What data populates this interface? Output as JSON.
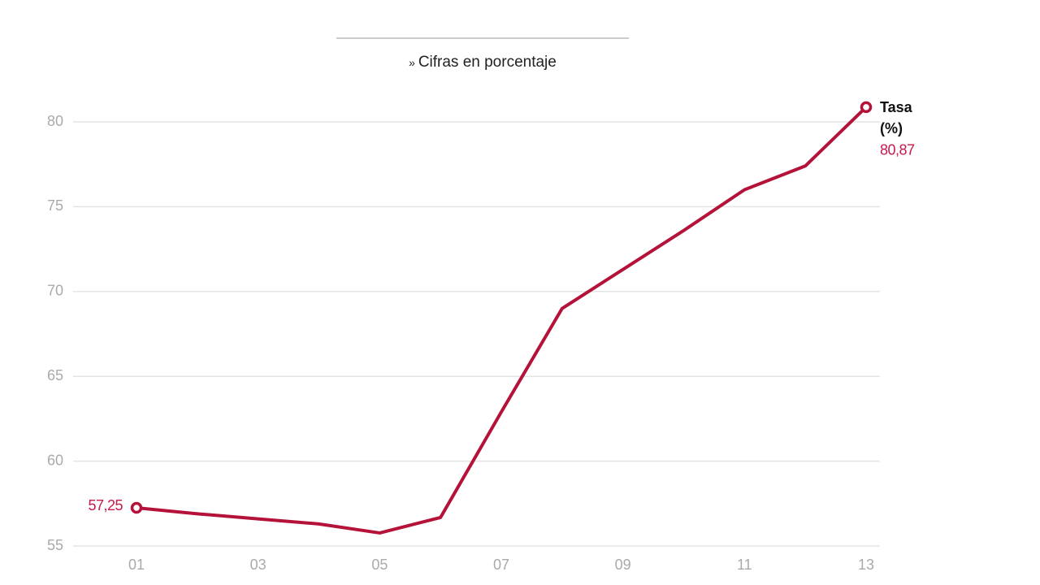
{
  "chart_data": {
    "type": "line",
    "subtitle": "Cifras en porcentaje",
    "categories": [
      "01",
      null,
      "03",
      null,
      "05",
      null,
      "07",
      null,
      "09",
      null,
      "11",
      null,
      "13"
    ],
    "series": [
      {
        "name": "Tasa (%)",
        "color": "#b5123a",
        "values": [
          57.25,
          56.9,
          56.6,
          56.3,
          55.77,
          56.68,
          62.9,
          69.0,
          71.3,
          73.6,
          76.0,
          77.4,
          80.87
        ],
        "value_labels": [
          "57,25",
          null,
          null,
          null,
          null,
          null,
          null,
          null,
          null,
          null,
          null,
          null,
          "80,87"
        ]
      }
    ],
    "ylim": [
      55,
      80
    ],
    "yticks": [
      55,
      60,
      65,
      70,
      75,
      80
    ],
    "grid": true
  }
}
